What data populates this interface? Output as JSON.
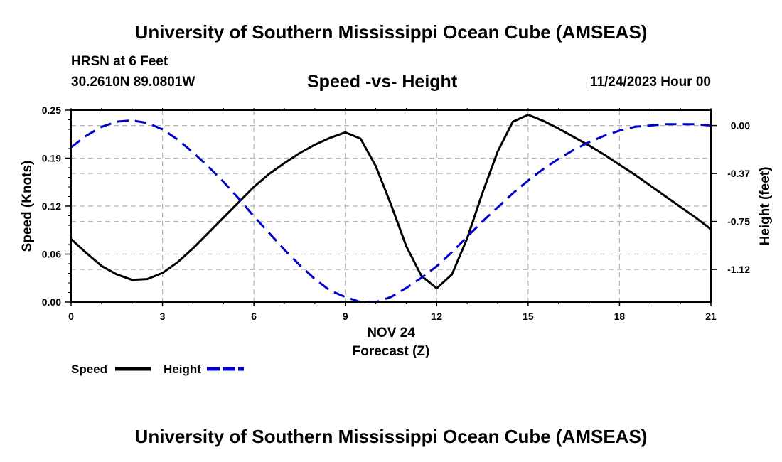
{
  "header": {
    "title": "University of Southern Mississippi Ocean Cube (AMSEAS)",
    "station": "HRSN at 6 Feet",
    "coords": "30.2610N  89.0801W",
    "subtitle": "Speed -vs- Height",
    "datetime": "11/24/2023 Hour 00"
  },
  "footer": {
    "title": "University of Southern Mississippi Ocean Cube (AMSEAS)"
  },
  "chart_data": {
    "type": "line",
    "title": "Speed -vs- Height",
    "xlabel_line1": "NOV 24",
    "xlabel": "Forecast (Z)",
    "ylabel": "Speed (Knots)",
    "y2label": "Height (feet)",
    "xlim": [
      0,
      21
    ],
    "ylim": [
      0,
      0.25
    ],
    "y2lim": [
      -1.38,
      0.12
    ],
    "x_ticks": [
      "0",
      "3",
      "6",
      "9",
      "12",
      "15",
      "18",
      "21"
    ],
    "x_tick_values": [
      0,
      3,
      6,
      9,
      12,
      15,
      18,
      21
    ],
    "y_ticks": [
      "0.00",
      "0.06",
      "0.12",
      "0.19",
      "0.25"
    ],
    "y_tick_values": [
      0,
      0.0625,
      0.125,
      0.1875,
      0.25
    ],
    "y2_ticks": [
      "0.00",
      "-0.37",
      "-0.75",
      "-1.12"
    ],
    "y2_tick_values": [
      0,
      -0.375,
      -0.75,
      -1.125
    ],
    "grid": true,
    "legend_position": "bottom-left",
    "series": [
      {
        "name": "Speed",
        "axis": "left",
        "color": "#000000",
        "style": "solid",
        "x": [
          0,
          0.5,
          1,
          1.5,
          2,
          2.5,
          3,
          3.5,
          4,
          4.5,
          5,
          5.5,
          6,
          6.5,
          7,
          7.5,
          8,
          8.5,
          9,
          9.5,
          10,
          10.5,
          11,
          11.5,
          12,
          12.5,
          13,
          13.5,
          14,
          14.5,
          15,
          15.5,
          16,
          16.5,
          17,
          17.5,
          18,
          18.5,
          19,
          19.5,
          20,
          20.5,
          21
        ],
        "values": [
          0.082,
          0.064,
          0.047,
          0.036,
          0.029,
          0.03,
          0.038,
          0.052,
          0.07,
          0.09,
          0.11,
          0.13,
          0.15,
          0.167,
          0.181,
          0.194,
          0.205,
          0.214,
          0.221,
          0.213,
          0.177,
          0.127,
          0.073,
          0.034,
          0.018,
          0.036,
          0.083,
          0.142,
          0.196,
          0.235,
          0.244,
          0.236,
          0.226,
          0.215,
          0.204,
          0.192,
          0.179,
          0.166,
          0.152,
          0.138,
          0.124,
          0.11,
          0.095
        ]
      },
      {
        "name": "Height",
        "axis": "right",
        "color": "#0000cc",
        "style": "dashed",
        "x": [
          0,
          0.5,
          1,
          1.5,
          2,
          2.5,
          3,
          3.5,
          4,
          4.5,
          5,
          5.5,
          6,
          6.5,
          7,
          7.5,
          8,
          8.5,
          9,
          9.5,
          10,
          10.5,
          11,
          11.5,
          12,
          12.5,
          13,
          13.5,
          14,
          14.5,
          15,
          15.5,
          16,
          16.5,
          17,
          17.5,
          18,
          18.5,
          19,
          19.5,
          20,
          20.5,
          21
        ],
        "values": [
          -0.17,
          -0.08,
          -0.01,
          0.03,
          0.04,
          0.02,
          -0.03,
          -0.11,
          -0.21,
          -0.32,
          -0.44,
          -0.57,
          -0.71,
          -0.84,
          -0.97,
          -1.09,
          -1.2,
          -1.29,
          -1.34,
          -1.38,
          -1.38,
          -1.34,
          -1.27,
          -1.19,
          -1.1,
          -0.99,
          -0.87,
          -0.75,
          -0.64,
          -0.53,
          -0.43,
          -0.34,
          -0.26,
          -0.19,
          -0.13,
          -0.08,
          -0.04,
          -0.01,
          0.0,
          0.01,
          0.01,
          0.01,
          0.0
        ]
      }
    ]
  }
}
